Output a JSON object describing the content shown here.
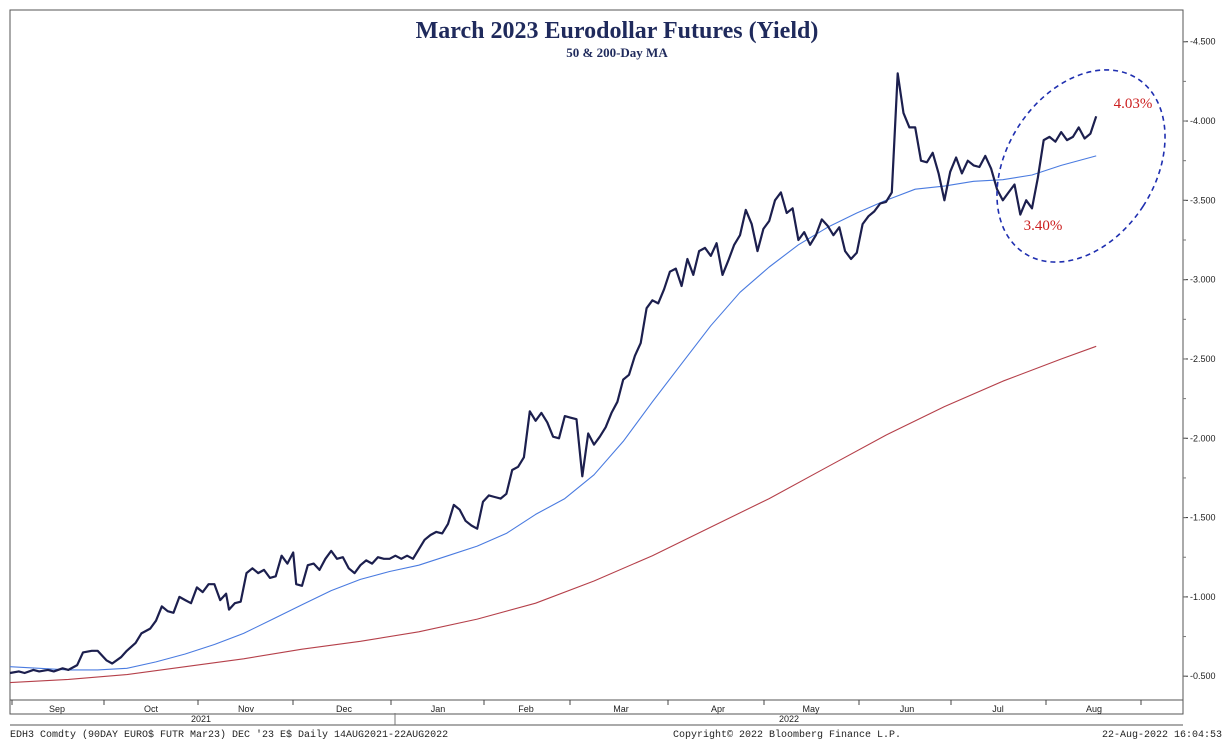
{
  "chart_data": {
    "type": "line",
    "title": "March 2023 Eurodollar Futures (Yield)",
    "subtitle": "50 & 200-Day MA",
    "ylim": [
      0.35,
      4.7
    ],
    "y_ticks": [
      "4.500",
      "4.000",
      "3.500",
      "3.000",
      "2.500",
      "2.000",
      "1.500",
      "1.000",
      "0.500"
    ],
    "y_tick_values": [
      4.5,
      4.0,
      3.5,
      3.0,
      2.5,
      2.0,
      1.5,
      1.0,
      0.5
    ],
    "month_labels": [
      "Sep",
      "Oct",
      "Nov",
      "Dec",
      "Jan",
      "Feb",
      "Mar",
      "Apr",
      "May",
      "Jun",
      "Jul",
      "Aug"
    ],
    "year_labels": [
      "2021",
      "2022"
    ],
    "grid": false,
    "series": [
      {
        "name": "",
        "color": "#1c1f4e",
        "points": [
          [
            0,
            0.52
          ],
          [
            0.3,
            0.53
          ],
          [
            0.5,
            0.52
          ],
          [
            0.8,
            0.54
          ],
          [
            1,
            0.53
          ],
          [
            1.3,
            0.54
          ],
          [
            1.5,
            0.53
          ],
          [
            1.8,
            0.55
          ],
          [
            2,
            0.54
          ],
          [
            2.3,
            0.57
          ],
          [
            2.5,
            0.65
          ],
          [
            2.8,
            0.66
          ],
          [
            3,
            0.66
          ],
          [
            3.3,
            0.6
          ],
          [
            3.5,
            0.58
          ],
          [
            3.8,
            0.62
          ],
          [
            4,
            0.66
          ],
          [
            4.3,
            0.71
          ],
          [
            4.5,
            0.77
          ],
          [
            4.8,
            0.8
          ],
          [
            5,
            0.85
          ],
          [
            5.2,
            0.94
          ],
          [
            5.4,
            0.91
          ],
          [
            5.6,
            0.9
          ],
          [
            5.8,
            1.0
          ],
          [
            6,
            0.98
          ],
          [
            6.2,
            0.96
          ],
          [
            6.4,
            1.06
          ],
          [
            6.6,
            1.03
          ],
          [
            6.8,
            1.08
          ],
          [
            7,
            1.08
          ],
          [
            7.2,
            0.98
          ],
          [
            7.4,
            1.02
          ],
          [
            7.5,
            0.92
          ],
          [
            7.7,
            0.96
          ],
          [
            7.9,
            0.97
          ],
          [
            8.1,
            1.15
          ],
          [
            8.3,
            1.18
          ],
          [
            8.5,
            1.15
          ],
          [
            8.7,
            1.17
          ],
          [
            8.9,
            1.12
          ],
          [
            9.1,
            1.13
          ],
          [
            9.3,
            1.26
          ],
          [
            9.5,
            1.21
          ],
          [
            9.7,
            1.28
          ],
          [
            9.8,
            1.08
          ],
          [
            10,
            1.07
          ],
          [
            10.2,
            1.2
          ],
          [
            10.4,
            1.21
          ],
          [
            10.6,
            1.17
          ],
          [
            10.8,
            1.24
          ],
          [
            11,
            1.29
          ],
          [
            11.2,
            1.24
          ],
          [
            11.4,
            1.25
          ],
          [
            11.6,
            1.18
          ],
          [
            11.8,
            1.15
          ],
          [
            12,
            1.2
          ],
          [
            12.2,
            1.23
          ],
          [
            12.4,
            1.21
          ],
          [
            12.6,
            1.25
          ],
          [
            12.8,
            1.24
          ],
          [
            13,
            1.24
          ],
          [
            13.2,
            1.26
          ],
          [
            13.4,
            1.24
          ],
          [
            13.6,
            1.26
          ],
          [
            13.8,
            1.24
          ],
          [
            14,
            1.3
          ],
          [
            14.2,
            1.36
          ],
          [
            14.4,
            1.39
          ],
          [
            14.6,
            1.41
          ],
          [
            14.8,
            1.4
          ],
          [
            15,
            1.46
          ],
          [
            15.2,
            1.58
          ],
          [
            15.4,
            1.55
          ],
          [
            15.6,
            1.48
          ],
          [
            15.8,
            1.45
          ],
          [
            16,
            1.43
          ],
          [
            16.2,
            1.6
          ],
          [
            16.4,
            1.64
          ],
          [
            16.6,
            1.63
          ],
          [
            16.8,
            1.62
          ],
          [
            17,
            1.65
          ],
          [
            17.2,
            1.8
          ],
          [
            17.4,
            1.82
          ],
          [
            17.6,
            1.88
          ],
          [
            17.8,
            2.17
          ],
          [
            18,
            2.11
          ],
          [
            18.2,
            2.16
          ],
          [
            18.4,
            2.1
          ],
          [
            18.6,
            2.01
          ],
          [
            18.8,
            2.0
          ],
          [
            19,
            2.14
          ],
          [
            19.2,
            2.13
          ],
          [
            19.4,
            2.12
          ],
          [
            19.6,
            1.76
          ],
          [
            19.8,
            2.03
          ],
          [
            20,
            1.96
          ],
          [
            20.2,
            2.01
          ],
          [
            20.4,
            2.07
          ],
          [
            20.6,
            2.16
          ],
          [
            20.8,
            2.23
          ],
          [
            21,
            2.37
          ],
          [
            21.2,
            2.4
          ],
          [
            21.4,
            2.52
          ],
          [
            21.6,
            2.6
          ],
          [
            21.8,
            2.82
          ],
          [
            22,
            2.87
          ],
          [
            22.2,
            2.85
          ],
          [
            22.4,
            2.94
          ],
          [
            22.6,
            3.05
          ],
          [
            22.8,
            3.07
          ],
          [
            23,
            2.96
          ],
          [
            23.2,
            3.13
          ],
          [
            23.4,
            3.03
          ],
          [
            23.6,
            3.18
          ],
          [
            23.8,
            3.2
          ],
          [
            24,
            3.15
          ],
          [
            24.2,
            3.23
          ],
          [
            24.4,
            3.03
          ],
          [
            24.6,
            3.12
          ],
          [
            24.8,
            3.22
          ],
          [
            25,
            3.28
          ],
          [
            25.2,
            3.44
          ],
          [
            25.4,
            3.35
          ],
          [
            25.6,
            3.18
          ],
          [
            25.8,
            3.32
          ],
          [
            26,
            3.37
          ],
          [
            26.2,
            3.5
          ],
          [
            26.4,
            3.55
          ],
          [
            26.6,
            3.42
          ],
          [
            26.8,
            3.45
          ],
          [
            27,
            3.25
          ],
          [
            27.2,
            3.3
          ],
          [
            27.4,
            3.22
          ],
          [
            27.6,
            3.28
          ],
          [
            27.8,
            3.38
          ],
          [
            28,
            3.34
          ],
          [
            28.2,
            3.28
          ],
          [
            28.4,
            3.33
          ],
          [
            28.6,
            3.18
          ],
          [
            28.8,
            3.13
          ],
          [
            29,
            3.17
          ],
          [
            29.2,
            3.35
          ],
          [
            29.4,
            3.4
          ],
          [
            29.6,
            3.43
          ],
          [
            29.8,
            3.48
          ],
          [
            30,
            3.49
          ],
          [
            30.2,
            3.55
          ],
          [
            30.4,
            4.3
          ],
          [
            30.6,
            4.05
          ],
          [
            30.8,
            3.96
          ],
          [
            31,
            3.96
          ],
          [
            31.2,
            3.75
          ],
          [
            31.4,
            3.74
          ],
          [
            31.6,
            3.8
          ],
          [
            31.8,
            3.67
          ],
          [
            32,
            3.5
          ],
          [
            32.2,
            3.68
          ],
          [
            32.4,
            3.77
          ],
          [
            32.6,
            3.67
          ],
          [
            32.8,
            3.75
          ],
          [
            33,
            3.72
          ],
          [
            33.2,
            3.71
          ],
          [
            33.4,
            3.78
          ],
          [
            33.6,
            3.7
          ],
          [
            33.8,
            3.57
          ],
          [
            34,
            3.5
          ],
          [
            34.2,
            3.55
          ],
          [
            34.4,
            3.6
          ],
          [
            34.6,
            3.41
          ],
          [
            34.8,
            3.5
          ],
          [
            35,
            3.45
          ],
          [
            35.2,
            3.64
          ],
          [
            35.4,
            3.88
          ],
          [
            35.6,
            3.9
          ],
          [
            35.8,
            3.87
          ],
          [
            36,
            3.93
          ],
          [
            36.2,
            3.88
          ],
          [
            36.4,
            3.9
          ],
          [
            36.6,
            3.96
          ],
          [
            36.8,
            3.89
          ],
          [
            37,
            3.92
          ],
          [
            37.2,
            4.03
          ]
        ]
      },
      {
        "name": "",
        "color": "#4a7be0",
        "points": [
          [
            0,
            0.56
          ],
          [
            1,
            0.55
          ],
          [
            2,
            0.54
          ],
          [
            3,
            0.54
          ],
          [
            4,
            0.55
          ],
          [
            5,
            0.59
          ],
          [
            6,
            0.64
          ],
          [
            7,
            0.7
          ],
          [
            8,
            0.77
          ],
          [
            9,
            0.86
          ],
          [
            10,
            0.95
          ],
          [
            11,
            1.04
          ],
          [
            12,
            1.11
          ],
          [
            13,
            1.16
          ],
          [
            14,
            1.2
          ],
          [
            15,
            1.26
          ],
          [
            16,
            1.32
          ],
          [
            17,
            1.4
          ],
          [
            18,
            1.52
          ],
          [
            19,
            1.62
          ],
          [
            20,
            1.77
          ],
          [
            21,
            1.98
          ],
          [
            22,
            2.23
          ],
          [
            23,
            2.47
          ],
          [
            24,
            2.71
          ],
          [
            25,
            2.92
          ],
          [
            26,
            3.08
          ],
          [
            27,
            3.22
          ],
          [
            28,
            3.33
          ],
          [
            29,
            3.42
          ],
          [
            30,
            3.5
          ],
          [
            31,
            3.57
          ],
          [
            32,
            3.59
          ],
          [
            33,
            3.62
          ],
          [
            34,
            3.63
          ],
          [
            35,
            3.66
          ],
          [
            36,
            3.72
          ],
          [
            37.2,
            3.78
          ]
        ]
      },
      {
        "name": "",
        "color": "#b5404a",
        "points": [
          [
            0,
            0.46
          ],
          [
            2,
            0.48
          ],
          [
            4,
            0.51
          ],
          [
            6,
            0.56
          ],
          [
            8,
            0.61
          ],
          [
            10,
            0.67
          ],
          [
            12,
            0.72
          ],
          [
            14,
            0.78
          ],
          [
            16,
            0.86
          ],
          [
            18,
            0.96
          ],
          [
            20,
            1.1
          ],
          [
            22,
            1.26
          ],
          [
            24,
            1.44
          ],
          [
            26,
            1.62
          ],
          [
            28,
            1.82
          ],
          [
            30,
            2.02
          ],
          [
            32,
            2.2
          ],
          [
            34,
            2.36
          ],
          [
            36,
            2.5
          ],
          [
            37.2,
            2.58
          ]
        ]
      }
    ],
    "annotations": [
      {
        "text": "4.03%",
        "x": 37.2,
        "y": 4.03
      },
      {
        "text": "3.40%",
        "x": 35.0,
        "y": 3.4
      }
    ]
  },
  "footer": {
    "left": "EDH3 Comdty (90DAY EURO$ FUTR  Mar23) DEC '23 E$  Daily 14AUG2021-22AUG2022",
    "center": "Copyright© 2022 Bloomberg Finance L.P.",
    "right": "22-Aug-2022 16:04:53"
  }
}
